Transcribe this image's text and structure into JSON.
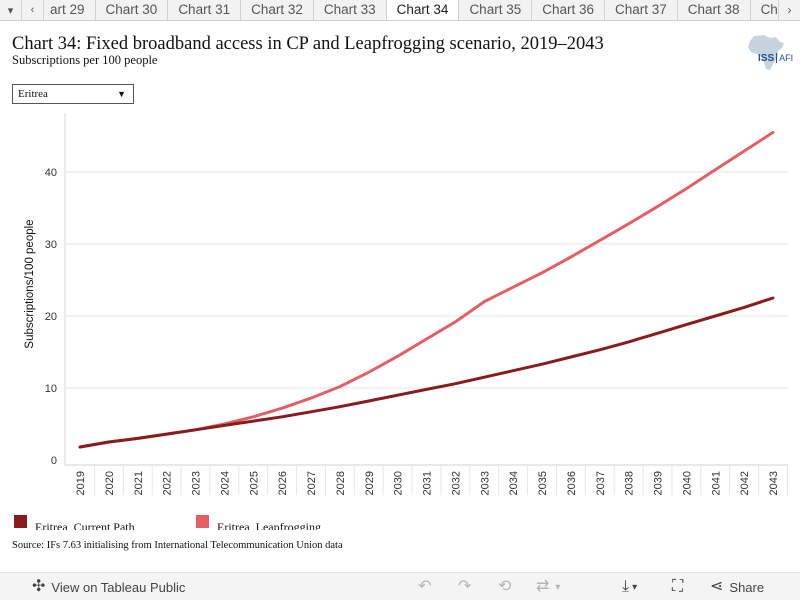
{
  "tabbar": {
    "menu_icon": "chevron-down-icon",
    "prev_icon": "chevron-left-icon",
    "next_icon": "chevron-right-icon",
    "tabs": [
      "art 29",
      "Chart 30",
      "Chart 31",
      "Chart 32",
      "Chart 33",
      "Chart 34",
      "Chart 35",
      "Chart 36",
      "Chart 37",
      "Chart 38",
      "Char"
    ],
    "active_index": 5
  },
  "header": {
    "title": "Chart 34: Fixed broadband access in CP and Leapfrogging scenario, 2019–2043",
    "subtitle": "Subscriptions per 100 people"
  },
  "logo": {
    "text": "ISS",
    "text2": "AFI"
  },
  "filter": {
    "selected": "Eritrea"
  },
  "chart_data": {
    "type": "line",
    "ylabel": "Subscriptions/100 people",
    "x": [
      "2019",
      "2020",
      "2021",
      "2022",
      "2023",
      "2024",
      "2025",
      "2026",
      "2027",
      "2028",
      "2029",
      "2030",
      "2031",
      "2032",
      "2033",
      "2034",
      "2035",
      "2036",
      "2037",
      "2038",
      "2039",
      "2040",
      "2041",
      "2042",
      "2043"
    ],
    "y_ticks": [
      0,
      10,
      20,
      30,
      40
    ],
    "ylim": [
      0,
      47
    ],
    "grid": "horizontal",
    "series": [
      {
        "name": "Eritrea, Current Path",
        "color": "#8b1a1f",
        "values": [
          1.8,
          2.5,
          3.0,
          3.6,
          4.2,
          4.8,
          5.4,
          6.0,
          6.7,
          7.4,
          8.2,
          9.0,
          9.8,
          10.6,
          11.5,
          12.4,
          13.3,
          14.3,
          15.3,
          16.4,
          17.6,
          18.8,
          20.0,
          21.2,
          22.5
        ]
      },
      {
        "name": "Eritrea, Leapfrogging",
        "color": "#e35f65",
        "values": [
          1.8,
          2.5,
          3.0,
          3.6,
          4.2,
          5.0,
          6.0,
          7.2,
          8.6,
          10.2,
          12.2,
          14.4,
          16.8,
          19.2,
          22.0,
          24.0,
          26.0,
          28.2,
          30.5,
          32.8,
          35.2,
          37.7,
          40.3,
          42.9,
          45.5
        ]
      }
    ]
  },
  "legend": {
    "items": [
      {
        "label": "Eritrea, Current Path",
        "color": "#8b1a1f"
      },
      {
        "label": "Eritrea, Leapfrogging",
        "color": "#e35f65"
      }
    ]
  },
  "source": "Source: IFs 7.63 initialising from International Telecommunication Union data",
  "toolbar": {
    "view_label": "View on Tableau Public",
    "share_label": "Share",
    "icons": {
      "view": "tableau-icon",
      "undo": "undo-icon",
      "redo": "redo-icon",
      "revert": "revert-icon",
      "refresh": "refresh-icon",
      "download": "download-icon",
      "fullscreen": "fullscreen-icon",
      "share": "share-icon"
    }
  }
}
